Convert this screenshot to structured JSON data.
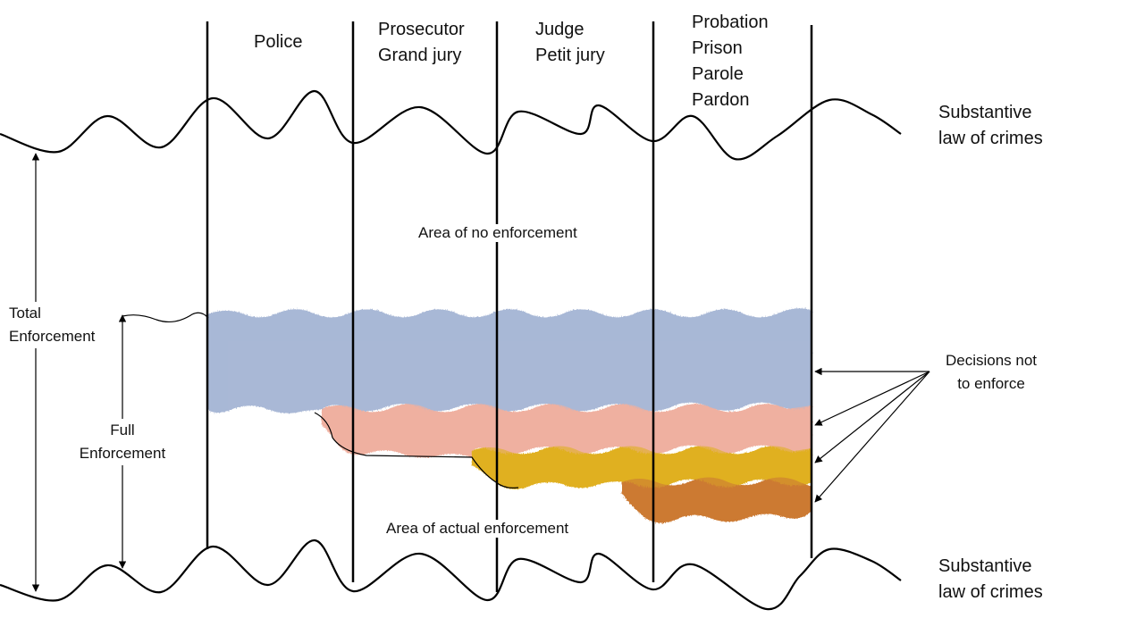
{
  "stages": [
    {
      "id": "police",
      "lines": [
        "Police"
      ]
    },
    {
      "id": "prosecutor",
      "lines": [
        "Prosecutor",
        "Grand jury"
      ]
    },
    {
      "id": "judge",
      "lines": [
        "Judge",
        "Petit jury"
      ]
    },
    {
      "id": "corrections",
      "lines": [
        "Probation",
        "Prison",
        "Parole",
        "Pardon"
      ]
    }
  ],
  "substantive_law_top": [
    "Substantive",
    "law of crimes"
  ],
  "substantive_law_bottom": [
    "Substantive",
    "law of crimes"
  ],
  "area_no_enforcement": "Area of no enforcement",
  "area_actual_enforcement": "Area of actual enforcement",
  "total_enforcement": [
    "Total",
    "Enforcement"
  ],
  "full_enforcement": [
    "Full",
    "Enforcement"
  ],
  "decisions_not_to_enforce": [
    "Decisions not",
    "to enforce"
  ],
  "colors": {
    "police_layer": "#a9b8d6",
    "prosecutor_layer": "#efb0a0",
    "judge_layer": "#e0b020",
    "corrections_layer": "#cc7a33",
    "lines": "#000000"
  }
}
